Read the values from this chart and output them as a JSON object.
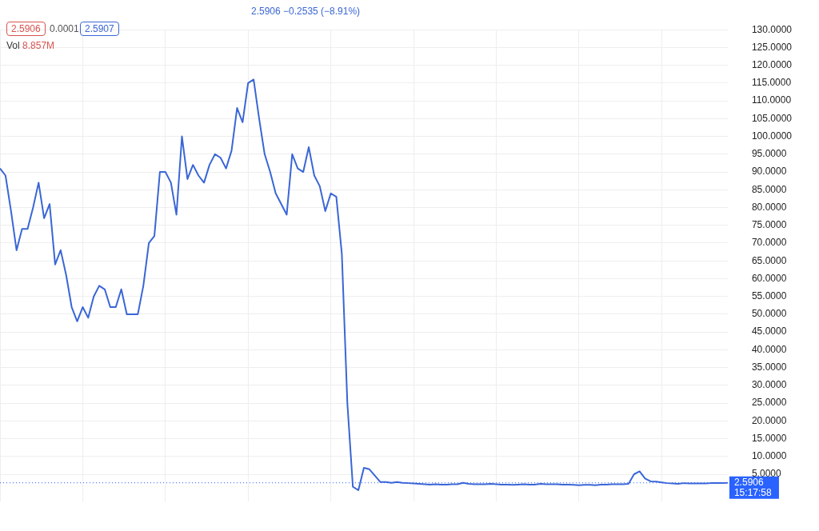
{
  "chart_data": {
    "type": "line",
    "categories": [
      null,
      null,
      null,
      null,
      null,
      null,
      null,
      null,
      null,
      null,
      null,
      null,
      null,
      null,
      null,
      null,
      null,
      null,
      null,
      null,
      null,
      null,
      null,
      null,
      null,
      null,
      null,
      null,
      null,
      null,
      null,
      null,
      null,
      null,
      null,
      null,
      null,
      null,
      null,
      null,
      null,
      null,
      null,
      null,
      null,
      null,
      null,
      null,
      null,
      null,
      null,
      null,
      null,
      null,
      null,
      null,
      null,
      null,
      null,
      null,
      null,
      null,
      null,
      null,
      null,
      null,
      null,
      null,
      null,
      null,
      null,
      null,
      null,
      null,
      null,
      null,
      null,
      null,
      null,
      null,
      null,
      null,
      null,
      null,
      null,
      null,
      null,
      null,
      null,
      null,
      null,
      null,
      null,
      null,
      null,
      null,
      null,
      null,
      null,
      null,
      null,
      null,
      null,
      null,
      null,
      null,
      null,
      null,
      null,
      null,
      null,
      null,
      null,
      null,
      null,
      null,
      null,
      null,
      null,
      null,
      null,
      null,
      null,
      null,
      null,
      null,
      null,
      null,
      null,
      null,
      null,
      null,
      null
    ],
    "series": [
      {
        "color": "#3a66d6",
        "values": [
          91,
          89,
          79,
          68,
          74,
          74,
          80,
          87,
          77,
          81,
          64,
          68,
          61,
          52,
          48,
          52,
          49,
          55,
          58,
          57,
          52,
          52,
          57,
          50,
          50,
          50,
          58,
          70,
          72,
          90,
          90,
          87,
          78,
          100,
          88,
          92,
          89,
          87,
          92,
          95,
          94,
          91,
          96,
          108,
          104,
          115,
          116,
          105,
          95,
          90,
          84,
          81,
          78,
          95,
          91,
          90,
          97,
          89,
          86,
          79,
          84,
          83,
          67,
          25,
          1.5,
          0.5,
          6.8,
          6.4,
          4.6,
          2.8,
          2.8,
          2.6,
          2.8,
          2.6,
          2.5,
          2.4,
          2.3,
          2.2,
          2.1,
          2.2,
          2.1,
          2.1,
          2.2,
          2.2,
          2.6,
          2.3,
          2.2,
          2.2,
          2.2,
          2.3,
          2.2,
          2.1,
          2.1,
          2.0,
          2.1,
          2.2,
          2.1,
          2.1,
          2.3,
          2.2,
          2.2,
          2.2,
          2.1,
          2.1,
          2.0,
          1.9,
          2.0,
          2.0,
          1.9,
          2.1,
          2.1,
          2.2,
          2.2,
          2.2,
          2.3,
          5.0,
          5.8,
          3.8,
          3.0,
          2.9,
          2.7,
          2.5,
          2.4,
          2.3,
          2.5,
          2.4,
          2.4,
          2.4,
          2.4,
          2.5,
          2.5,
          2.5,
          2.6
        ]
      }
    ],
    "ylim": [
      -2.6,
      130
    ],
    "yticks": [
      {
        "value": 5,
        "label": "5.0000"
      },
      {
        "value": 10,
        "label": "10.0000"
      },
      {
        "value": 15,
        "label": "15.0000"
      },
      {
        "value": 20,
        "label": "20.0000"
      },
      {
        "value": 25,
        "label": "25.0000"
      },
      {
        "value": 30,
        "label": "30.0000"
      },
      {
        "value": 35,
        "label": "35.0000"
      },
      {
        "value": 40,
        "label": "40.0000"
      },
      {
        "value": 45,
        "label": "45.0000"
      },
      {
        "value": 50,
        "label": "50.0000"
      },
      {
        "value": 55,
        "label": "55.0000"
      },
      {
        "value": 60,
        "label": "60.0000"
      },
      {
        "value": 65,
        "label": "65.0000"
      },
      {
        "value": 70,
        "label": "70.0000"
      },
      {
        "value": 75,
        "label": "75.0000"
      },
      {
        "value": 80,
        "label": "80.0000"
      },
      {
        "value": 85,
        "label": "85.0000"
      },
      {
        "value": 90,
        "label": "90.0000"
      },
      {
        "value": 95,
        "label": "95.0000"
      },
      {
        "value": 100,
        "label": "100.0000"
      },
      {
        "value": 105,
        "label": "105.0000"
      },
      {
        "value": 110,
        "label": "110.0000"
      },
      {
        "value": 115,
        "label": "115.0000"
      },
      {
        "value": 120,
        "label": "120.0000"
      },
      {
        "value": 125,
        "label": "125.0000"
      },
      {
        "value": 130,
        "label": "130.0000"
      }
    ],
    "grid": true,
    "tick_labels": "y",
    "ref_lines": [
      {
        "axis": "y",
        "value": 2.5906,
        "label": "2.5906",
        "color": "#2962ff",
        "line_style": "dotted"
      }
    ],
    "annotations": [
      "2.5906",
      "0.0001",
      "2.5907",
      "Vol 8.857M",
      "2.5906 −0.2535 (−8.91%)",
      "15:17:58"
    ]
  }
}
